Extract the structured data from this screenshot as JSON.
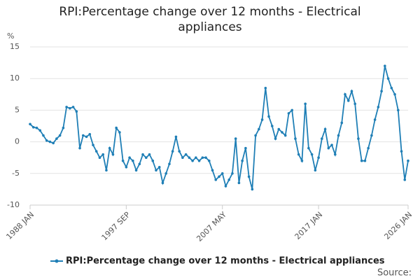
{
  "chart_data": {
    "type": "line",
    "title": "RPI:Percentage change over 12 months - Electrical appliances",
    "y_label": "%",
    "source": "Source:",
    "categories": [
      "1988 JAN",
      null,
      null,
      null,
      null,
      null,
      null,
      null,
      null,
      null,
      null,
      null,
      null,
      null,
      null,
      null,
      null,
      null,
      null,
      null,
      null,
      null,
      null,
      null,
      null,
      null,
      null,
      null,
      null,
      "1997 SEP",
      null,
      null,
      null,
      null,
      null,
      null,
      null,
      null,
      null,
      null,
      null,
      null,
      null,
      null,
      null,
      null,
      null,
      null,
      null,
      null,
      null,
      null,
      null,
      null,
      null,
      null,
      null,
      null,
      "2007 MAY",
      null,
      null,
      null,
      null,
      null,
      null,
      null,
      null,
      null,
      null,
      null,
      null,
      null,
      null,
      null,
      null,
      null,
      null,
      null,
      null,
      null,
      null,
      null,
      null,
      null,
      null,
      null,
      null,
      "2017 JAN",
      null,
      null,
      null,
      null,
      null,
      null,
      null,
      null,
      null,
      null,
      null,
      null,
      null,
      null,
      null,
      null,
      null,
      null,
      null,
      null,
      null,
      null,
      null,
      null,
      null,
      null,
      "2026 JAN"
    ],
    "series": [
      {
        "name": "RPI:Percentage change over 12 months - Electrical appliances",
        "color": "#1f7fb6",
        "values": [
          2.8,
          2.3,
          2.2,
          1.8,
          1.0,
          0.2,
          0,
          -0.2,
          0.5,
          1.0,
          2.2,
          5.5,
          5.3,
          5.5,
          4.8,
          -1.0,
          1.0,
          0.8,
          1.2,
          -0.5,
          -1.5,
          -2.5,
          -2.0,
          -4.5,
          -1.0,
          -2.0,
          2.2,
          1.5,
          -3.0,
          -4.0,
          -2.5,
          -3.0,
          -4.5,
          -3.5,
          -2.0,
          -2.5,
          -2.0,
          -3.0,
          -4.5,
          -4.0,
          -6.5,
          -5.0,
          -3.5,
          -1.5,
          0.8,
          -1.5,
          -2.5,
          -2.0,
          -2.5,
          -3.0,
          -2.5,
          -3.0,
          -2.5,
          -2.5,
          -3.0,
          -4.5,
          -6.0,
          -5.5,
          -5.0,
          -7.0,
          -6.0,
          -5.0,
          0.5,
          -6.5,
          -3.0,
          -1.0,
          -5.5,
          -7.5,
          1.0,
          2.0,
          3.5,
          8.5,
          4.0,
          2.5,
          0.5,
          2.0,
          1.5,
          1.0,
          4.5,
          5.0,
          0.5,
          -2.0,
          -3.0,
          6.0,
          -1.0,
          -2.0,
          -4.5,
          -2.5,
          0.5,
          2.0,
          -1.0,
          -0.5,
          -2.0,
          1.0,
          3.0,
          7.5,
          6.5,
          8.0,
          6.0,
          0.5,
          -3.0,
          -3.0,
          -1.0,
          1.0,
          3.5,
          5.5,
          8.0,
          12.0,
          10.0,
          8.5,
          7.5,
          5.0,
          -1.5,
          -6.0,
          -3.0
        ]
      }
    ],
    "ylim": [
      -10,
      15
    ],
    "yticks": [
      -10,
      -5,
      0,
      5,
      10,
      15
    ],
    "grid": true
  }
}
